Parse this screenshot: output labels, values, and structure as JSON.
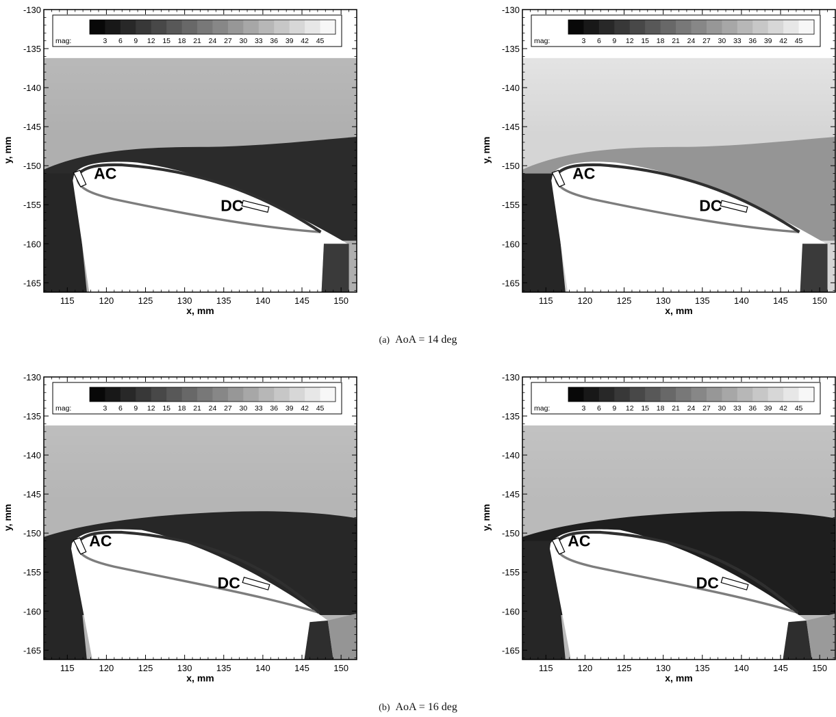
{
  "figure": {
    "captions": [
      {
        "tag": "(a)",
        "text": "AoA = 14 deg"
      },
      {
        "tag": "(b)",
        "text": "AoA = 16 deg"
      }
    ]
  },
  "chart_data": [
    {
      "type": "heatmap",
      "subplot": "(a) left",
      "aoa_deg": 14,
      "xlabel": "x, mm",
      "ylabel": "y, mm",
      "xlim": [
        112,
        152
      ],
      "ylim": [
        -166.2,
        -130
      ],
      "xticks": [
        115,
        120,
        125,
        130,
        135,
        140,
        145,
        150
      ],
      "yticks": [
        -130,
        -135,
        -140,
        -145,
        -150,
        -155,
        -160,
        -165
      ],
      "colorbar": {
        "label": "mag:",
        "ticks": [
          3,
          6,
          9,
          12,
          15,
          18,
          21,
          24,
          27,
          30,
          33,
          36,
          39,
          42,
          45
        ],
        "range": [
          0,
          48
        ]
      },
      "field_top_y": -136.2,
      "freestream_mag": 33,
      "wake_mag": 6,
      "annotations": [
        {
          "text": "AC",
          "x": 118.4,
          "y": -151.7
        },
        {
          "text": "DC",
          "x": 134.6,
          "y": -155.8
        }
      ]
    },
    {
      "type": "heatmap",
      "subplot": "(a) right",
      "aoa_deg": 14,
      "xlabel": "x, mm",
      "ylabel": "y, mm",
      "xlim": [
        112,
        152
      ],
      "ylim": [
        -166.2,
        -130
      ],
      "xticks": [
        115,
        120,
        125,
        130,
        135,
        140,
        145,
        150
      ],
      "yticks": [
        -130,
        -135,
        -140,
        -145,
        -150,
        -155,
        -160,
        -165
      ],
      "colorbar": {
        "label": "mag:",
        "ticks": [
          3,
          6,
          9,
          12,
          15,
          18,
          21,
          24,
          27,
          30,
          33,
          36,
          39,
          42,
          45
        ],
        "range": [
          0,
          48
        ]
      },
      "field_top_y": -136.2,
      "freestream_mag": 40,
      "wake_mag": 27,
      "annotations": [
        {
          "text": "AC",
          "x": 118.4,
          "y": -151.7
        },
        {
          "text": "DC",
          "x": 134.6,
          "y": -155.8
        }
      ]
    },
    {
      "type": "heatmap",
      "subplot": "(b) left",
      "aoa_deg": 16,
      "xlabel": "x, mm",
      "ylabel": "y, mm",
      "xlim": [
        112,
        152
      ],
      "ylim": [
        -166.2,
        -130
      ],
      "xticks": [
        115,
        120,
        125,
        130,
        135,
        140,
        145,
        150
      ],
      "yticks": [
        -130,
        -135,
        -140,
        -145,
        -150,
        -155,
        -160,
        -165
      ],
      "colorbar": {
        "label": "mag:",
        "ticks": [
          3,
          6,
          9,
          12,
          15,
          18,
          21,
          24,
          27,
          30,
          33,
          36,
          39,
          42,
          45
        ],
        "range": [
          0,
          48
        ]
      },
      "field_top_y": -136.2,
      "freestream_mag": 34,
      "wake_mag": 5,
      "annotations": [
        {
          "text": "AC",
          "x": 117.8,
          "y": -151.7
        },
        {
          "text": "DC",
          "x": 134.2,
          "y": -157.1
        }
      ]
    },
    {
      "type": "heatmap",
      "subplot": "(b) right",
      "aoa_deg": 16,
      "xlabel": "x, mm",
      "ylabel": "y, mm",
      "xlim": [
        112,
        152
      ],
      "ylim": [
        -166.2,
        -130
      ],
      "xticks": [
        115,
        120,
        125,
        130,
        135,
        140,
        145,
        150
      ],
      "yticks": [
        -130,
        -135,
        -140,
        -145,
        -150,
        -155,
        -160,
        -165
      ],
      "colorbar": {
        "label": "mag:",
        "ticks": [
          3,
          6,
          9,
          12,
          15,
          18,
          21,
          24,
          27,
          30,
          33,
          36,
          39,
          42,
          45
        ],
        "range": [
          0,
          48
        ]
      },
      "field_top_y": -136.2,
      "freestream_mag": 35,
      "wake_mag": 3,
      "annotations": [
        {
          "text": "AC",
          "x": 117.8,
          "y": -151.7
        },
        {
          "text": "DC",
          "x": 134.2,
          "y": -157.1
        }
      ]
    }
  ]
}
